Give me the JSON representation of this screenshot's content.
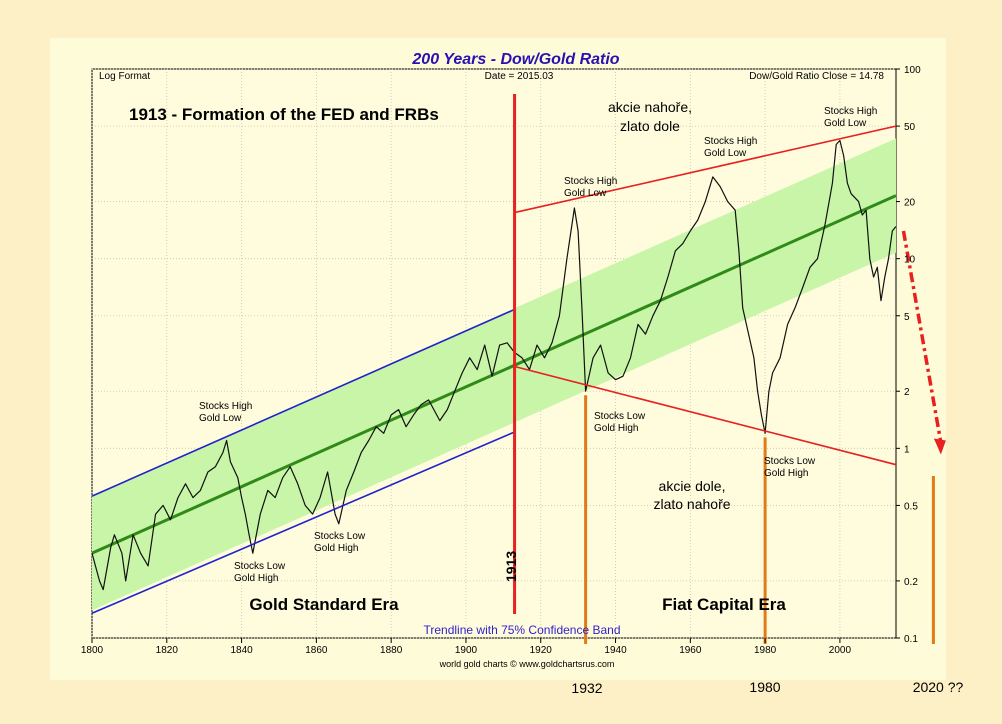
{
  "chart_data": {
    "type": "line",
    "title": "200 Years - Dow/Gold Ratio",
    "header_left": "Log Format",
    "header_center": "Date = 2015.03",
    "header_right": "Dow/Gold Ratio Close = 14.78",
    "y_scale": "log",
    "ylim": [
      0.1,
      100
    ],
    "xlim": [
      1800,
      2015
    ],
    "x_ticks": [
      "1800",
      "1820",
      "1840",
      "1860",
      "1880",
      "1900",
      "1920",
      "1940",
      "1960",
      "1980",
      "2000"
    ],
    "y_ticks": [
      "100",
      "50",
      "20",
      "10",
      "5",
      "2",
      "1",
      "0.5",
      "0.2",
      "0.1"
    ],
    "grid": true,
    "series": [
      {
        "name": "Dow/Gold Ratio",
        "points": [
          [
            1800,
            0.28
          ],
          [
            1802,
            0.2
          ],
          [
            1803,
            0.18
          ],
          [
            1805,
            0.3
          ],
          [
            1806,
            0.35
          ],
          [
            1808,
            0.28
          ],
          [
            1809,
            0.2
          ],
          [
            1811,
            0.35
          ],
          [
            1813,
            0.28
          ],
          [
            1815,
            0.24
          ],
          [
            1817,
            0.45
          ],
          [
            1819,
            0.5
          ],
          [
            1821,
            0.42
          ],
          [
            1823,
            0.55
          ],
          [
            1825,
            0.65
          ],
          [
            1827,
            0.55
          ],
          [
            1829,
            0.6
          ],
          [
            1831,
            0.75
          ],
          [
            1833,
            0.8
          ],
          [
            1835,
            0.95
          ],
          [
            1836,
            1.1
          ],
          [
            1837,
            0.85
          ],
          [
            1839,
            0.7
          ],
          [
            1840,
            0.55
          ],
          [
            1841,
            0.45
          ],
          [
            1842,
            0.35
          ],
          [
            1843,
            0.28
          ],
          [
            1845,
            0.45
          ],
          [
            1847,
            0.6
          ],
          [
            1849,
            0.55
          ],
          [
            1851,
            0.7
          ],
          [
            1853,
            0.8
          ],
          [
            1855,
            0.65
          ],
          [
            1857,
            0.5
          ],
          [
            1859,
            0.45
          ],
          [
            1861,
            0.55
          ],
          [
            1863,
            0.75
          ],
          [
            1865,
            0.45
          ],
          [
            1866,
            0.4
          ],
          [
            1868,
            0.6
          ],
          [
            1870,
            0.75
          ],
          [
            1872,
            0.95
          ],
          [
            1874,
            1.1
          ],
          [
            1876,
            1.3
          ],
          [
            1878,
            1.2
          ],
          [
            1880,
            1.5
          ],
          [
            1882,
            1.6
          ],
          [
            1884,
            1.3
          ],
          [
            1886,
            1.5
          ],
          [
            1888,
            1.7
          ],
          [
            1890,
            1.8
          ],
          [
            1893,
            1.4
          ],
          [
            1895,
            1.6
          ],
          [
            1897,
            2.0
          ],
          [
            1899,
            2.5
          ],
          [
            1901,
            3.0
          ],
          [
            1903,
            2.6
          ],
          [
            1905,
            3.5
          ],
          [
            1907,
            2.4
          ],
          [
            1909,
            3.5
          ],
          [
            1911,
            3.6
          ],
          [
            1913,
            3.2
          ],
          [
            1915,
            3.0
          ],
          [
            1917,
            2.6
          ],
          [
            1919,
            3.5
          ],
          [
            1921,
            3.0
          ],
          [
            1923,
            3.6
          ],
          [
            1925,
            5.0
          ],
          [
            1927,
            10.0
          ],
          [
            1929,
            18.5
          ],
          [
            1930,
            14.0
          ],
          [
            1931,
            5.5
          ],
          [
            1932,
            2.0
          ],
          [
            1934,
            3.0
          ],
          [
            1936,
            3.5
          ],
          [
            1938,
            2.5
          ],
          [
            1940,
            2.3
          ],
          [
            1942,
            2.4
          ],
          [
            1944,
            3.0
          ],
          [
            1946,
            4.5
          ],
          [
            1948,
            4.0
          ],
          [
            1950,
            5.0
          ],
          [
            1952,
            6.0
          ],
          [
            1954,
            8.0
          ],
          [
            1956,
            11.0
          ],
          [
            1958,
            12.0
          ],
          [
            1960,
            14.0
          ],
          [
            1962,
            16.0
          ],
          [
            1964,
            20.0
          ],
          [
            1966,
            27.0
          ],
          [
            1968,
            24.0
          ],
          [
            1970,
            20.0
          ],
          [
            1972,
            18.0
          ],
          [
            1973,
            11.0
          ],
          [
            1974,
            5.5
          ],
          [
            1975,
            4.5
          ],
          [
            1977,
            3.0
          ],
          [
            1978,
            2.0
          ],
          [
            1979,
            1.5
          ],
          [
            1980,
            1.2
          ],
          [
            1981,
            2.0
          ],
          [
            1982,
            2.5
          ],
          [
            1984,
            3.0
          ],
          [
            1986,
            4.5
          ],
          [
            1988,
            5.5
          ],
          [
            1990,
            7.0
          ],
          [
            1992,
            9.0
          ],
          [
            1994,
            10.0
          ],
          [
            1996,
            15.0
          ],
          [
            1998,
            25.0
          ],
          [
            1999,
            40.0
          ],
          [
            2000,
            42.0
          ],
          [
            2001,
            35.0
          ],
          [
            2002,
            25.0
          ],
          [
            2003,
            22.0
          ],
          [
            2005,
            20.0
          ],
          [
            2006,
            17.0
          ],
          [
            2007,
            18.0
          ],
          [
            2008,
            10.0
          ],
          [
            2009,
            8.0
          ],
          [
            2010,
            9.0
          ],
          [
            2011,
            6.0
          ],
          [
            2012,
            8.0
          ],
          [
            2013,
            10.0
          ],
          [
            2014,
            14.0
          ],
          [
            2015,
            14.78
          ]
        ]
      }
    ],
    "trendline": {
      "from": [
        1800,
        0.28
      ],
      "to": [
        2015,
        21.5
      ],
      "band_factor": 2.0
    },
    "channel_gold_standard": {
      "upper": [
        [
          1800,
          0.56
        ],
        [
          1913,
          5.4
        ]
      ],
      "lower": [
        [
          1800,
          0.135
        ],
        [
          1913,
          1.22
        ]
      ]
    },
    "channel_fiat": {
      "upper": [
        [
          1913,
          17.5
        ],
        [
          2015,
          50.0
        ]
      ],
      "lower": [
        [
          1913,
          2.7
        ],
        [
          2015,
          0.82
        ]
      ]
    },
    "fed_line_year": 1913,
    "projection_arrow": {
      "from": [
        2017,
        14
      ],
      "to": [
        2027,
        0.95
      ]
    },
    "markers": [
      {
        "year": 1932,
        "from_value": 2.0
      },
      {
        "year": 1980,
        "from_value": 1.2
      },
      {
        "year": 2025,
        "from_value": 0.75
      }
    ],
    "annotations": {
      "fed_text": "1913 - Formation of the FED and FRBs",
      "fed_rot": "1913",
      "stocks_up": [
        "akcie nahoře,",
        "zlato dole"
      ],
      "stocks_down": [
        "akcie dole,",
        "zlato nahoře"
      ],
      "sh_gl_1836": [
        "Stocks High",
        "Gold Low"
      ],
      "sl_gh_1843": [
        "Stocks Low",
        "Gold High"
      ],
      "sl_gh_1865": [
        "Stocks Low",
        "Gold High"
      ],
      "sh_gl_1929": [
        "Stocks High",
        "Gold Low"
      ],
      "sl_gh_1932": [
        "Stocks Low",
        "Gold High"
      ],
      "sh_gl_1966": [
        "Stocks High",
        "Gold Low"
      ],
      "sl_gh_1980": [
        "Stocks Low",
        "Gold High"
      ],
      "sh_gl_2000": [
        "Stocks High",
        "Gold Low"
      ],
      "era_gold": "Gold Standard Era",
      "era_fiat": "Fiat Capital Era",
      "trend_label": "Trendline with 75% Confidence Band",
      "source": "world gold charts © www.goldchartsrus.com",
      "label_1932": "1932",
      "label_1980": "1980",
      "label_2020": "2020 ??"
    },
    "colors": {
      "plot_bg": "#fefcdd",
      "band": "#c8f5a8",
      "trend": "#2f8a17",
      "gold_channel": "#2222cc",
      "fiat_channel": "#e82020",
      "fed_line": "#e82020",
      "marker": "#e07b16",
      "title": "#2a10b0",
      "series": "#111111"
    }
  }
}
